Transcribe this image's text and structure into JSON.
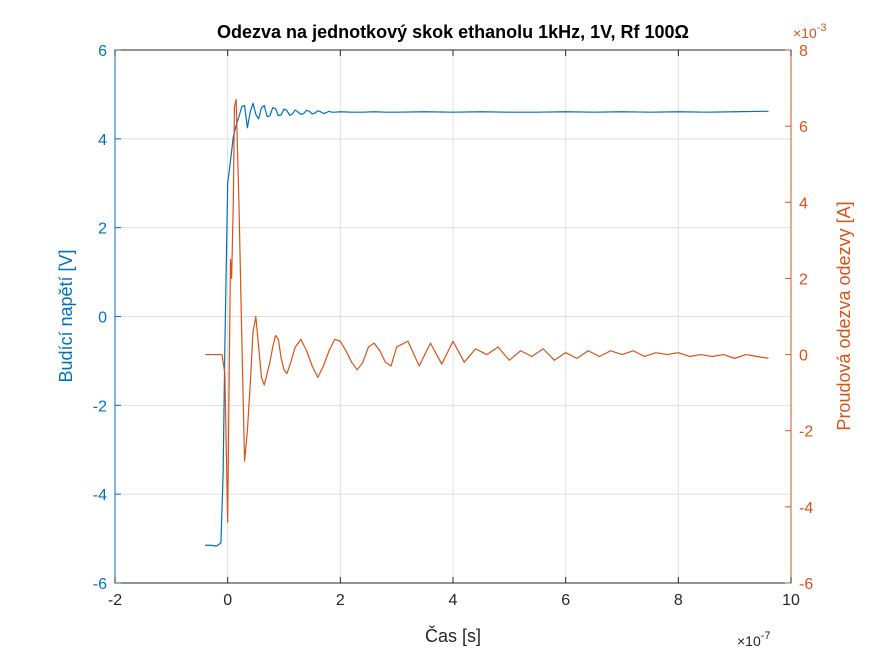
{
  "chart_data": {
    "type": "line",
    "title": "Odezva na jednotkový skok ethanolu 1kHz, 1V, Rf 100Ω",
    "xlabel": "Čas [s]",
    "ylabel_left": "Budící napětí [V]",
    "ylabel_right": "Proudová odezva odezvy [A]",
    "x_exponent_label": "×10",
    "x_exponent_power": "-7",
    "right_exponent_label": "×10",
    "right_exponent_power": "-3",
    "xlim": [
      -2,
      10
    ],
    "ylim_left": [
      -6,
      6
    ],
    "ylim_right": [
      -6,
      8
    ],
    "x_ticks": [
      -2,
      0,
      2,
      4,
      6,
      8,
      10
    ],
    "left_ticks": [
      -6,
      -4,
      -2,
      0,
      2,
      4,
      6
    ],
    "right_ticks": [
      -6,
      -4,
      -2,
      0,
      2,
      4,
      6,
      8
    ],
    "grid": true,
    "colors": {
      "left": "#0072BD",
      "right": "#D95319",
      "grid": "#DFDFDF",
      "axis": "#262626"
    },
    "series": [
      {
        "axis": "left",
        "x": [
          -0.4,
          -0.3,
          -0.2,
          -0.12,
          -0.08,
          -0.05,
          -0.02,
          0.0,
          0.05,
          0.1,
          0.15,
          0.2,
          0.25,
          0.3,
          0.35,
          0.4,
          0.45,
          0.5,
          0.55,
          0.6,
          0.65,
          0.7,
          0.75,
          0.8,
          0.85,
          0.9,
          0.95,
          1.0,
          1.05,
          1.1,
          1.15,
          1.2,
          1.25,
          1.3,
          1.35,
          1.4,
          1.45,
          1.5,
          1.55,
          1.6,
          1.65,
          1.7,
          1.75,
          1.8,
          1.85,
          1.9,
          2.0,
          2.2,
          2.4,
          2.6,
          2.8,
          3.0,
          3.5,
          4.0,
          4.5,
          5.0,
          5.5,
          6.0,
          6.5,
          7.0,
          7.5,
          8.0,
          8.5,
          9.0,
          9.5,
          9.6
        ],
        "values": [
          -5.15,
          -5.15,
          -5.17,
          -5.1,
          -3.5,
          -0.7,
          1.5,
          3.0,
          3.5,
          4.05,
          4.3,
          4.5,
          4.72,
          4.75,
          4.25,
          4.6,
          4.8,
          4.55,
          4.45,
          4.7,
          4.75,
          4.5,
          4.52,
          4.7,
          4.68,
          4.52,
          4.54,
          4.67,
          4.64,
          4.53,
          4.56,
          4.65,
          4.6,
          4.55,
          4.57,
          4.64,
          4.62,
          4.56,
          4.58,
          4.63,
          4.61,
          4.57,
          4.59,
          4.62,
          4.6,
          4.6,
          4.61,
          4.6,
          4.6,
          4.61,
          4.6,
          4.6,
          4.61,
          4.6,
          4.61,
          4.6,
          4.6,
          4.61,
          4.6,
          4.61,
          4.6,
          4.61,
          4.6,
          4.61,
          4.62,
          4.62
        ]
      },
      {
        "axis": "right",
        "x": [
          -0.4,
          -0.2,
          -0.1,
          -0.05,
          0.0,
          0.02,
          0.05,
          0.07,
          0.1,
          0.12,
          0.15,
          0.2,
          0.25,
          0.3,
          0.35,
          0.4,
          0.45,
          0.5,
          0.55,
          0.6,
          0.65,
          0.7,
          0.75,
          0.8,
          0.85,
          0.9,
          0.95,
          1.0,
          1.05,
          1.1,
          1.2,
          1.3,
          1.4,
          1.5,
          1.6,
          1.7,
          1.8,
          1.9,
          2.0,
          2.1,
          2.2,
          2.3,
          2.4,
          2.5,
          2.6,
          2.7,
          2.8,
          2.9,
          3.0,
          3.2,
          3.4,
          3.6,
          3.8,
          4.0,
          4.2,
          4.4,
          4.6,
          4.8,
          5.0,
          5.2,
          5.4,
          5.6,
          5.8,
          6.0,
          6.2,
          6.4,
          6.6,
          6.8,
          7.0,
          7.2,
          7.4,
          7.6,
          7.8,
          8.0,
          8.2,
          8.4,
          8.6,
          8.8,
          9.0,
          9.2,
          9.4,
          9.6
        ],
        "values": [
          0.0,
          0.0,
          0.0,
          -0.5,
          -4.4,
          -1.5,
          2.5,
          2.0,
          4.0,
          6.5,
          6.7,
          4.0,
          0.5,
          -2.8,
          -2.0,
          -0.8,
          0.6,
          1.0,
          0.2,
          -0.6,
          -0.8,
          -0.5,
          -0.2,
          0.2,
          0.5,
          0.4,
          -0.1,
          -0.4,
          -0.5,
          -0.3,
          0.2,
          0.4,
          0.1,
          -0.3,
          -0.6,
          -0.3,
          0.1,
          0.4,
          0.35,
          0.1,
          -0.2,
          -0.4,
          -0.2,
          0.2,
          0.3,
          0.1,
          -0.2,
          -0.3,
          0.2,
          0.35,
          -0.3,
          0.3,
          -0.25,
          0.35,
          -0.2,
          0.15,
          0.0,
          0.2,
          -0.15,
          0.1,
          -0.05,
          0.15,
          -0.15,
          0.05,
          -0.1,
          0.1,
          -0.05,
          0.1,
          0.0,
          0.1,
          -0.05,
          0.05,
          0.0,
          0.05,
          -0.05,
          0.0,
          -0.05,
          0.0,
          -0.1,
          0.0,
          -0.05,
          -0.1
        ]
      }
    ]
  }
}
